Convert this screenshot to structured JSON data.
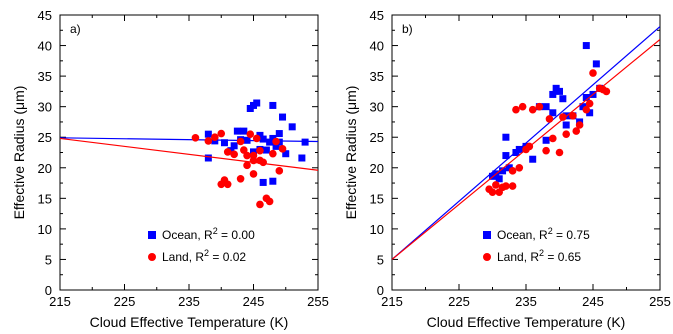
{
  "chart_data": [
    {
      "type": "scatter",
      "panel_label": "a)",
      "xlabel": "Cloud Effective Temperature (K)",
      "ylabel": "Effective Radius (μm)",
      "xlim": [
        215,
        255
      ],
      "ylim": [
        0,
        45
      ],
      "x_ticks": [
        215,
        225,
        235,
        245,
        255
      ],
      "y_ticks": [
        0,
        5,
        10,
        15,
        20,
        25,
        30,
        35,
        40,
        45
      ],
      "grid": false,
      "legend_position": "bottom-center",
      "series": [
        {
          "name": "Ocean, R² = 0.00",
          "name_main": "Ocean, R",
          "name_sup": "2",
          "name_tail": " = 0.00",
          "marker": "square",
          "color": "#0000ff",
          "points": [
            [
              238,
              25.5
            ],
            [
              238,
              21.6
            ],
            [
              239,
              24.4
            ],
            [
              240.5,
              24.1
            ],
            [
              241.5,
              22.8
            ],
            [
              242,
              23.6
            ],
            [
              242.5,
              26.0
            ],
            [
              243,
              24.6
            ],
            [
              243.5,
              26.0
            ],
            [
              244,
              24.5
            ],
            [
              244.5,
              29.7
            ],
            [
              245,
              30.2
            ],
            [
              245.5,
              30.6
            ],
            [
              245,
              22.6
            ],
            [
              246,
              25.3
            ],
            [
              246,
              23.0
            ],
            [
              246.5,
              24.7
            ],
            [
              246.5,
              17.6
            ],
            [
              247,
              22.9
            ],
            [
              247.5,
              24.2
            ],
            [
              248,
              30.2
            ],
            [
              248,
              24.8
            ],
            [
              248,
              17.8
            ],
            [
              248.5,
              23.5
            ],
            [
              249,
              25.6
            ],
            [
              249,
              24.2
            ],
            [
              249.5,
              28.3
            ],
            [
              250,
              22.3
            ],
            [
              251,
              26.7
            ],
            [
              252.5,
              21.6
            ],
            [
              253,
              24.2
            ]
          ],
          "fit": {
            "slope": -0.015,
            "intercept_at_215": 24.9
          }
        },
        {
          "name": "Land, R² = 0.02",
          "name_main": "Land, R",
          "name_sup": "2",
          "name_tail": " = 0.02",
          "marker": "circle",
          "color": "#ff0000",
          "points": [
            [
              236,
              24.9
            ],
            [
              238,
              24.4
            ],
            [
              239,
              25.0
            ],
            [
              240,
              25.6
            ],
            [
              240,
              17.3
            ],
            [
              240.5,
              18.0
            ],
            [
              241,
              17.3
            ],
            [
              241,
              22.6
            ],
            [
              242,
              22.2
            ],
            [
              243,
              24.3
            ],
            [
              243,
              18.2
            ],
            [
              243.5,
              22.9
            ],
            [
              244,
              22.0
            ],
            [
              244,
              20.4
            ],
            [
              244.5,
              25.5
            ],
            [
              245,
              22.0
            ],
            [
              245,
              21.2
            ],
            [
              245,
              19.0
            ],
            [
              245.5,
              24.8
            ],
            [
              246,
              22.8
            ],
            [
              246,
              21.2
            ],
            [
              246.5,
              20.9
            ],
            [
              246,
              14.0
            ],
            [
              247,
              15.0
            ],
            [
              247.5,
              14.5
            ],
            [
              248,
              22.3
            ],
            [
              248.5,
              24.3
            ],
            [
              249,
              19.5
            ],
            [
              249.5,
              23.1
            ]
          ],
          "fit": {
            "slope": -0.13,
            "intercept_at_215": 24.8
          }
        }
      ]
    },
    {
      "type": "scatter",
      "panel_label": "b)",
      "xlabel": "Cloud Effective Temperature (K)",
      "ylabel": "Effective Radius (μm)",
      "xlim": [
        215,
        255
      ],
      "ylim": [
        0,
        45
      ],
      "x_ticks": [
        215,
        225,
        235,
        245,
        255
      ],
      "y_ticks": [
        0,
        5,
        10,
        15,
        20,
        25,
        30,
        35,
        40,
        45
      ],
      "grid": false,
      "legend_position": "bottom-right",
      "series": [
        {
          "name": "Ocean, R² = 0.75",
          "name_main": "Ocean, R",
          "name_sup": "2",
          "name_tail": " = 0.75",
          "marker": "square",
          "color": "#0000ff",
          "points": [
            [
              230,
              18.6
            ],
            [
              230.5,
              19.0
            ],
            [
              231,
              18.2
            ],
            [
              231.5,
              19.5
            ],
            [
              232,
              22.0
            ],
            [
              232,
              25.0
            ],
            [
              232.5,
              20.0
            ],
            [
              233.5,
              22.5
            ],
            [
              234,
              23.0
            ],
            [
              235,
              23.5
            ],
            [
              236,
              21.4
            ],
            [
              237,
              30.0
            ],
            [
              238,
              30.0
            ],
            [
              238,
              24.5
            ],
            [
              239,
              32.0
            ],
            [
              239,
              29.0
            ],
            [
              239.5,
              33.0
            ],
            [
              240,
              32.5
            ],
            [
              240.5,
              31.3
            ],
            [
              241,
              28.5
            ],
            [
              241,
              27.0
            ],
            [
              242,
              28.5
            ],
            [
              243,
              27.5
            ],
            [
              243.5,
              30.0
            ],
            [
              244,
              31.5
            ],
            [
              244,
              40.0
            ],
            [
              244.5,
              29.0
            ],
            [
              245,
              32.0
            ],
            [
              245.5,
              37.0
            ],
            [
              246,
              33.0
            ]
          ],
          "fit": {
            "slope": 0.9525,
            "intercept_at_215": 5.0
          }
        },
        {
          "name": "Land, R² = 0.65",
          "name_main": "Land, R",
          "name_sup": "2",
          "name_tail": " = 0.65",
          "marker": "circle",
          "color": "#ff0000",
          "points": [
            [
              229.5,
              16.5
            ],
            [
              230,
              16.0
            ],
            [
              230.5,
              17.2
            ],
            [
              231,
              16.0
            ],
            [
              231.5,
              16.8
            ],
            [
              232,
              17.0
            ],
            [
              233,
              19.5
            ],
            [
              233,
              17.0
            ],
            [
              233.5,
              29.5
            ],
            [
              234,
              20.0
            ],
            [
              234.5,
              30.0
            ],
            [
              235,
              23.0
            ],
            [
              235.5,
              23.5
            ],
            [
              236,
              29.5
            ],
            [
              237,
              30.0
            ],
            [
              238,
              22.8
            ],
            [
              238.5,
              28.0
            ],
            [
              239,
              24.8
            ],
            [
              240,
              22.5
            ],
            [
              240.5,
              28.3
            ],
            [
              241,
              25.5
            ],
            [
              242,
              28.5
            ],
            [
              242.5,
              26.0
            ],
            [
              243,
              27.0
            ],
            [
              244,
              29.5
            ],
            [
              244.5,
              30.5
            ],
            [
              245,
              35.5
            ],
            [
              246,
              33.0
            ],
            [
              246.5,
              32.8
            ],
            [
              247,
              32.5
            ]
          ],
          "fit": {
            "slope": 0.9,
            "intercept_at_215": 5.0
          }
        }
      ]
    }
  ]
}
